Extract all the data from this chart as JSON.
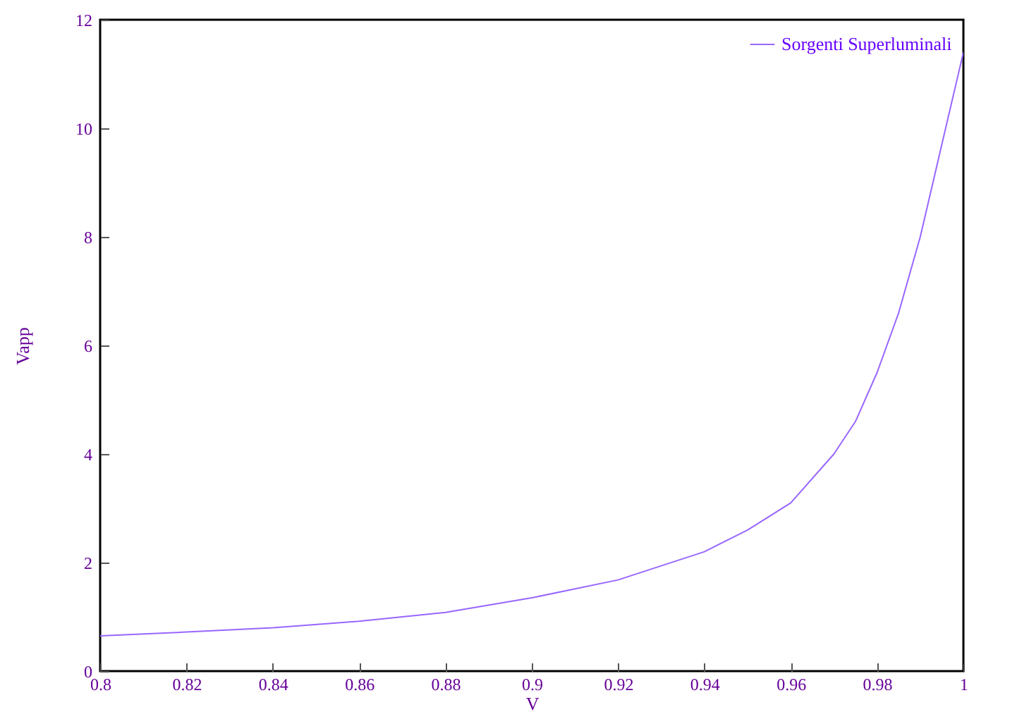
{
  "chart_data": {
    "type": "line",
    "xlabel": "V",
    "ylabel": "Vapp",
    "x": [
      0.8,
      0.82,
      0.84,
      0.86,
      0.88,
      0.9,
      0.92,
      0.94,
      0.95,
      0.96,
      0.97,
      0.975,
      0.98,
      0.985,
      0.99,
      0.995,
      1.0
    ],
    "series": [
      {
        "name": "Sorgenti Superluminali",
        "color": "#9966ff",
        "values": [
          0.65,
          0.72,
          0.8,
          0.92,
          1.08,
          1.35,
          1.68,
          2.2,
          2.6,
          3.1,
          4.0,
          4.6,
          5.5,
          6.6,
          8.0,
          9.7,
          11.4
        ]
      }
    ],
    "xlim": [
      0.8,
      1
    ],
    "xticks": [
      0.8,
      0.82,
      0.84,
      0.86,
      0.88,
      0.9,
      0.92,
      0.94,
      0.96,
      0.98,
      1
    ],
    "ylim": [
      0,
      12
    ],
    "yticks": [
      0,
      2,
      4,
      6,
      8,
      10,
      12
    ],
    "grid": false,
    "legend": "top right",
    "line_style": "solid",
    "marker": "none"
  }
}
